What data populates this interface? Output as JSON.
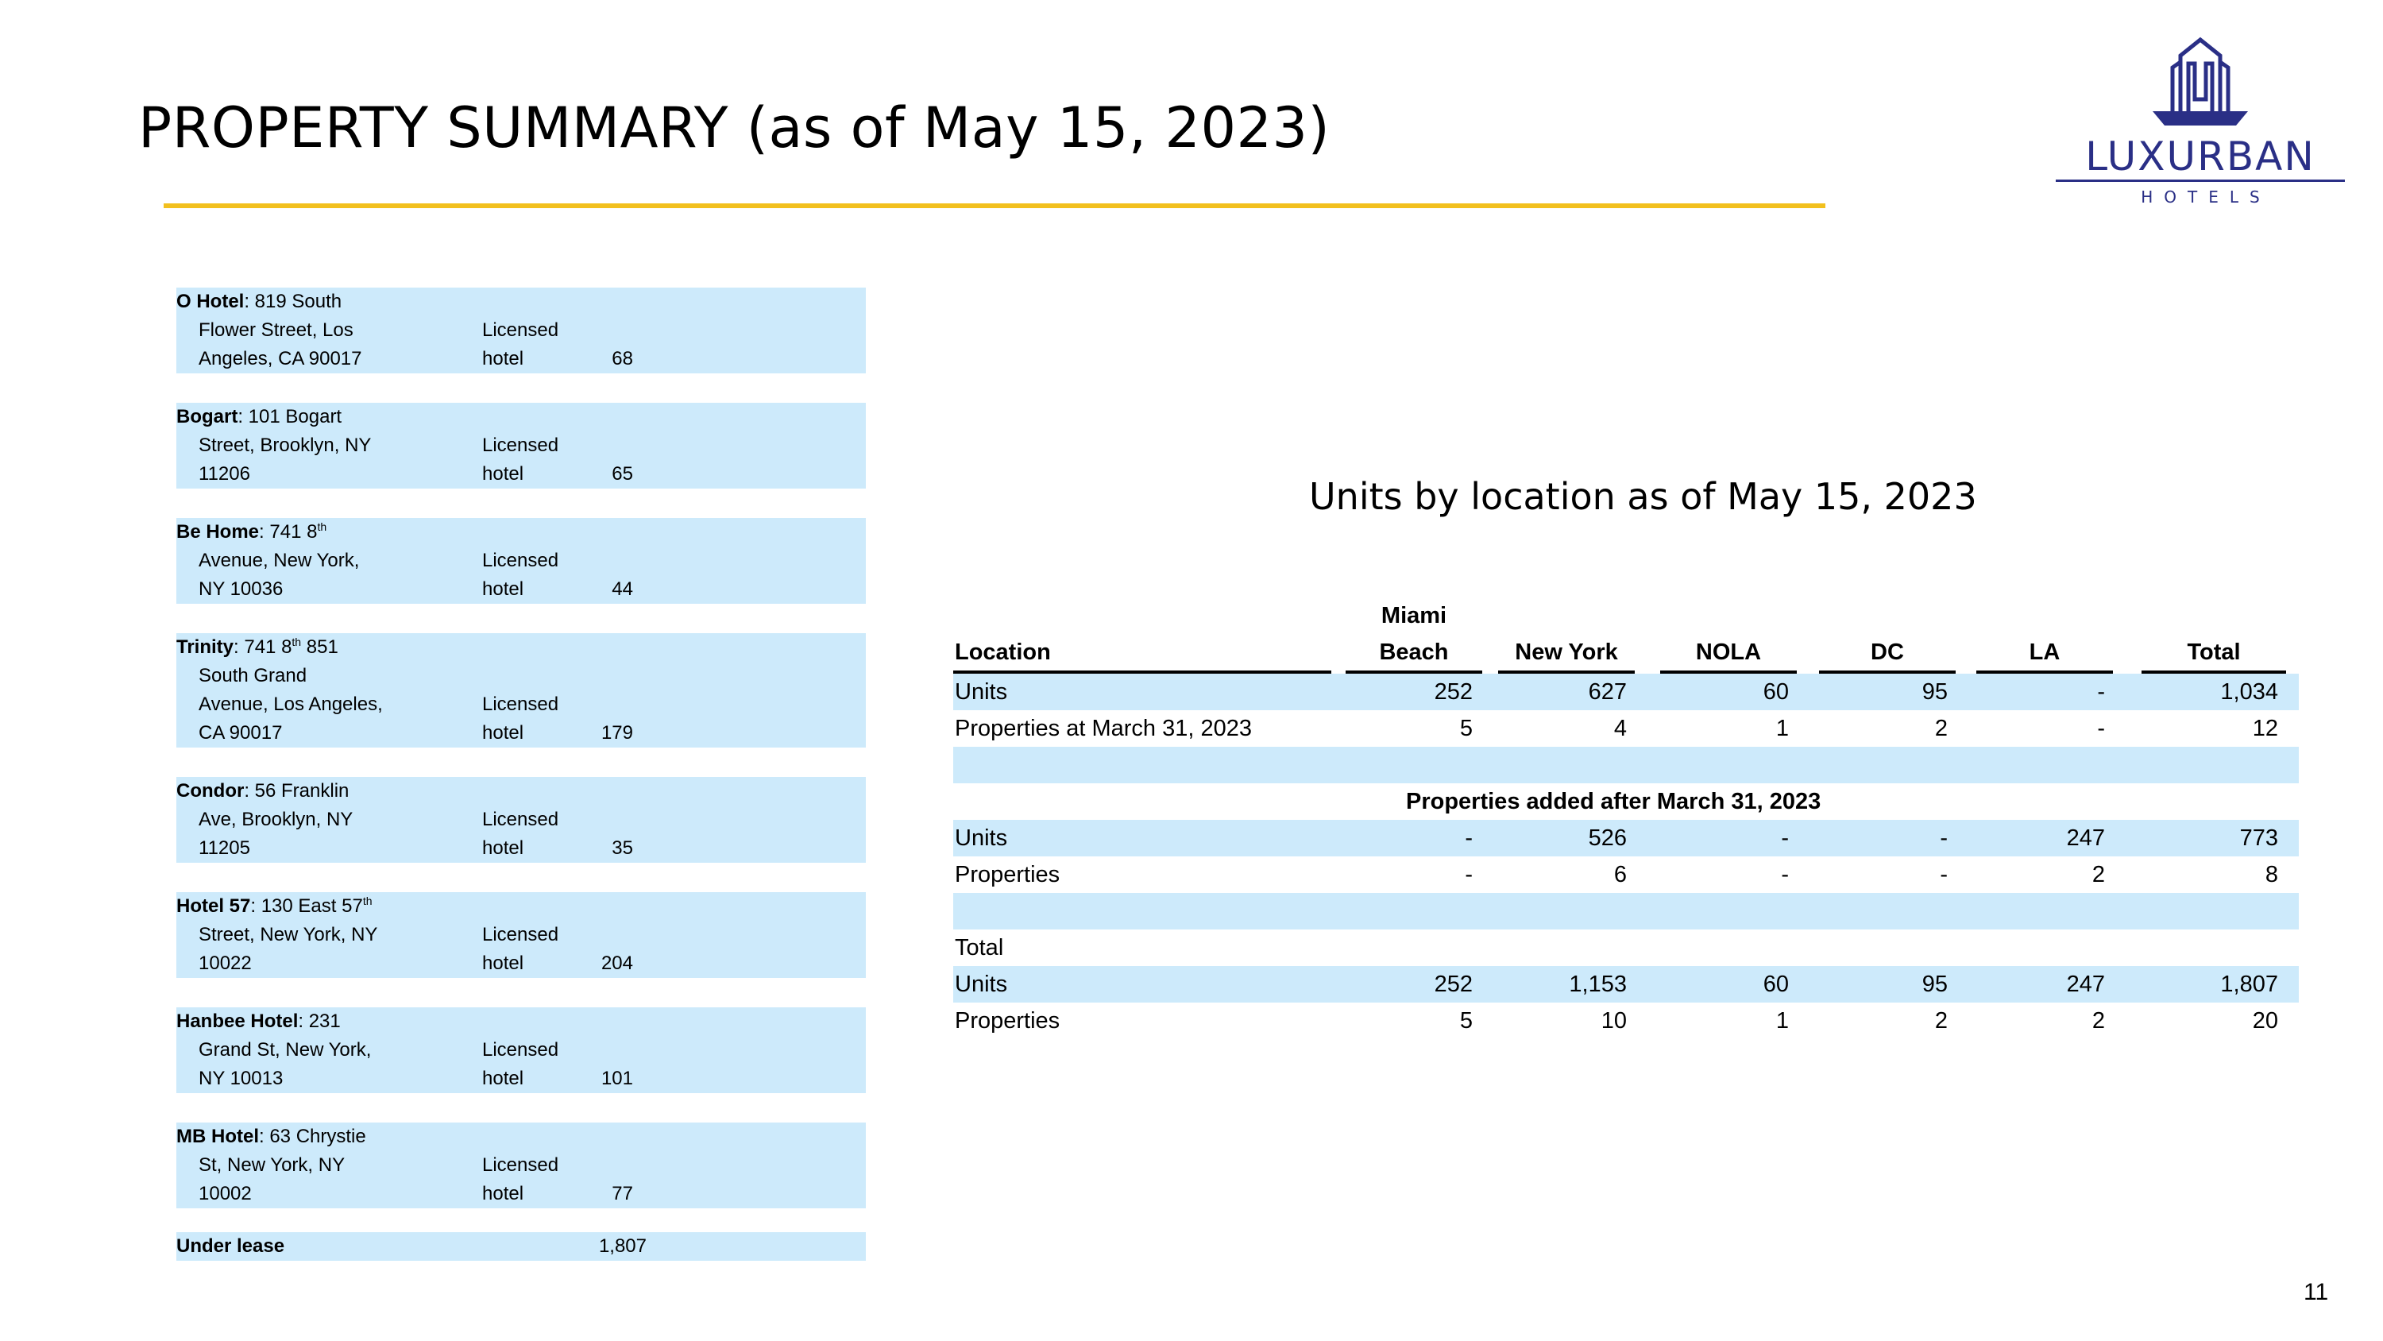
{
  "header": {
    "title": "PROPERTY SUMMARY (as of May 15, 2023)"
  },
  "logo": {
    "brand": "LUXURBAN",
    "sub": "HOTELS",
    "icon": "luxurban-tower-logo-icon",
    "color": "#2a2f86"
  },
  "accent_color": "#f2c01e",
  "row_fill_color": "#cdeafb",
  "properties": [
    {
      "name": "O Hotel",
      "line1_rest": ": 819 South",
      "line2": "Flower Street, Los",
      "line3": "Angeles, CA 90017",
      "units": "68",
      "status1": "Licensed",
      "status2": "hotel"
    },
    {
      "name": "Bogart",
      "line1_rest": ": 101 Bogart",
      "line2": "Street, Brooklyn, NY",
      "line3": "11206",
      "units": "65",
      "status1": "Licensed",
      "status2": "hotel"
    },
    {
      "name": "Be Home",
      "line1_rest": ": 741 8",
      "line1_sup": "th",
      "line2": "Avenue, New York,",
      "line3": "NY 10036",
      "units": "44",
      "status1": "Licensed",
      "status2": "hotel"
    },
    {
      "name": "Trinity",
      "line1_rest": ": 741 8",
      "line1_sup": "th",
      "line1_tail": " 851",
      "line2": "South Grand",
      "line3": "Avenue, Los Angeles,",
      "line4": "CA 90017",
      "units": "179",
      "status1": "Licensed",
      "status2": "hotel"
    },
    {
      "name": "Condor",
      "line1_rest": ": 56 Franklin",
      "line2": "Ave, Brooklyn, NY",
      "line3": "11205",
      "units": "35",
      "status1": "Licensed",
      "status2": "hotel"
    },
    {
      "name": "Hotel 57",
      "line1_rest": ": 130 East 57",
      "line1_sup": "th",
      "line2": "Street, New York, NY",
      "line3": "10022",
      "units": "204",
      "status1": "Licensed",
      "status2": "hotel"
    },
    {
      "name": "Hanbee Hotel",
      "line1_rest": ": 231",
      "line2": "Grand St, New York,",
      "line3": "NY 10013",
      "units": "101",
      "status1": "Licensed",
      "status2": "hotel"
    },
    {
      "name": "MB Hotel",
      "line1_rest": ": 63 Chrystie",
      "line2": "St, New York, NY",
      "line3": "10002",
      "units": "77",
      "status1": "Licensed",
      "status2": "hotel"
    }
  ],
  "lease": {
    "label": "Under lease",
    "value": "1,807"
  },
  "units_table": {
    "title": "Units by location as of May 15, 2023",
    "headers": {
      "location": "Location",
      "miami_top": "Miami",
      "miami_bottom": "Beach",
      "new_york": "New York",
      "nola": "NOLA",
      "dc": "DC",
      "la": "LA",
      "total": "Total"
    },
    "rows": {
      "units": {
        "label": "Units",
        "values": [
          "252",
          "627",
          "60",
          "95",
          "-",
          "1,034"
        ]
      },
      "props": {
        "label": "Properties at March 31, 2023",
        "values": [
          "5",
          "4",
          "1",
          "2",
          "-",
          "12"
        ]
      },
      "added_heading": "Properties added after March 31, 2023",
      "added_units": {
        "label": "Units",
        "values": [
          "-",
          "526",
          "-",
          "-",
          "247",
          "773"
        ]
      },
      "added_props": {
        "label": "Properties",
        "values": [
          "-",
          "6",
          "-",
          "-",
          "2",
          "8"
        ]
      },
      "total_heading": "Total",
      "total_units": {
        "label": "Units",
        "values": [
          "252",
          "1,153",
          "60",
          "95",
          "247",
          "1,807"
        ]
      },
      "total_props": {
        "label": "Properties",
        "values": [
          "5",
          "10",
          "1",
          "2",
          "2",
          "20"
        ]
      }
    }
  },
  "page_number": "11"
}
